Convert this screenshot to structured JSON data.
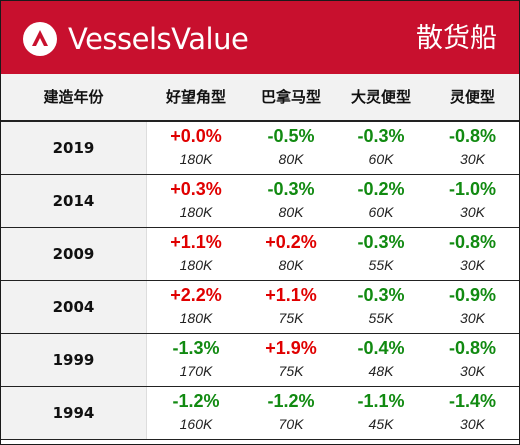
{
  "header": {
    "brand": "VesselsValue",
    "category": "散货船",
    "brand_color": "#c8102e"
  },
  "columns": {
    "year": "建造年份",
    "capesize": "好望角型",
    "panamax": "巴拿马型",
    "supramax": "大灵便型",
    "handysize": "灵便型"
  },
  "colors": {
    "up": "#e00000",
    "down": "#118a11"
  },
  "rows": [
    {
      "year": "2019",
      "cells": [
        {
          "pct": "+0.0%",
          "size": "180K",
          "dir": "up"
        },
        {
          "pct": "-0.5%",
          "size": "80K",
          "dir": "down"
        },
        {
          "pct": "-0.3%",
          "size": "60K",
          "dir": "down"
        },
        {
          "pct": "-0.8%",
          "size": "30K",
          "dir": "down"
        }
      ]
    },
    {
      "year": "2014",
      "cells": [
        {
          "pct": "+0.3%",
          "size": "180K",
          "dir": "up"
        },
        {
          "pct": "-0.3%",
          "size": "80K",
          "dir": "down"
        },
        {
          "pct": "-0.2%",
          "size": "60K",
          "dir": "down"
        },
        {
          "pct": "-1.0%",
          "size": "30K",
          "dir": "down"
        }
      ]
    },
    {
      "year": "2009",
      "cells": [
        {
          "pct": "+1.1%",
          "size": "180K",
          "dir": "up"
        },
        {
          "pct": "+0.2%",
          "size": "80K",
          "dir": "up"
        },
        {
          "pct": "-0.3%",
          "size": "55K",
          "dir": "down"
        },
        {
          "pct": "-0.8%",
          "size": "30K",
          "dir": "down"
        }
      ]
    },
    {
      "year": "2004",
      "cells": [
        {
          "pct": "+2.2%",
          "size": "180K",
          "dir": "up"
        },
        {
          "pct": "+1.1%",
          "size": "75K",
          "dir": "up"
        },
        {
          "pct": "-0.3%",
          "size": "55K",
          "dir": "down"
        },
        {
          "pct": "-0.9%",
          "size": "30K",
          "dir": "down"
        }
      ]
    },
    {
      "year": "1999",
      "cells": [
        {
          "pct": "-1.3%",
          "size": "170K",
          "dir": "down"
        },
        {
          "pct": "+1.9%",
          "size": "75K",
          "dir": "up"
        },
        {
          "pct": "-0.4%",
          "size": "48K",
          "dir": "down"
        },
        {
          "pct": "-0.8%",
          "size": "30K",
          "dir": "down"
        }
      ]
    },
    {
      "year": "1994",
      "cells": [
        {
          "pct": "-1.2%",
          "size": "160K",
          "dir": "down"
        },
        {
          "pct": "-1.2%",
          "size": "70K",
          "dir": "down"
        },
        {
          "pct": "-1.1%",
          "size": "45K",
          "dir": "down"
        },
        {
          "pct": "-1.4%",
          "size": "30K",
          "dir": "down"
        }
      ]
    }
  ]
}
